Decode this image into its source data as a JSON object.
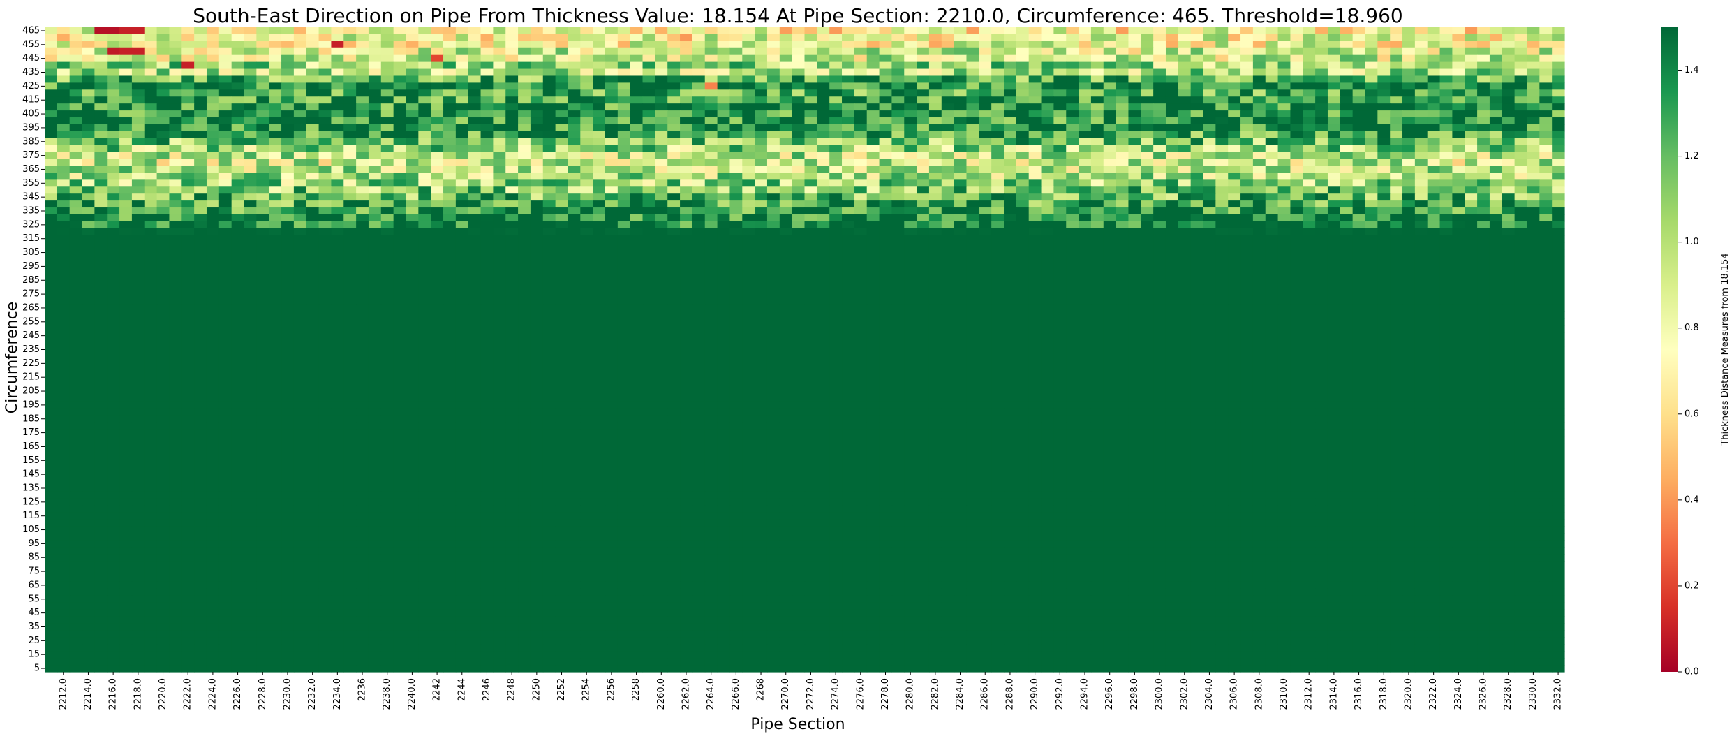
{
  "chart_data": {
    "type": "heatmap",
    "title": "South-East Direction on Pipe From Thickness Value: 18.154 At Pipe Section: 2210.0, Circumference: 465. Threshold=18.960",
    "xlabel": "Pipe Section",
    "ylabel": "Circumference",
    "colorbar_label": "Thickness Distance Measures from 18.154",
    "colormap": "RdYlGn",
    "colormap_stops": [
      "#a50026",
      "#d73027",
      "#f46d43",
      "#fdae61",
      "#fee08b",
      "#ffffbf",
      "#d9ef8b",
      "#a6d96a",
      "#66bd63",
      "#1a9850",
      "#006837"
    ],
    "vmin": 0.0,
    "vmax": 1.5,
    "colorbar_ticks": [
      "0.0",
      "0.2",
      "0.4",
      "0.6",
      "0.8",
      "1.0",
      "1.2",
      "1.4"
    ],
    "x_start": 2211,
    "x_step": 1,
    "x_count": 122,
    "x_tick_labels": [
      "2212.0",
      "2214.0",
      "2216.0",
      "2218.0",
      "2220.0",
      "2222.0",
      "2224.0",
      "2226.0",
      "2228.0",
      "2230.0",
      "2232.0",
      "2234.0",
      "2236",
      "2238.0",
      "2240.0",
      "2242",
      "2244",
      "2246",
      "2248",
      "2250",
      "2252",
      "2254",
      "2256",
      "2258",
      "2260.0",
      "2262.0",
      "2264.0",
      "2266.0",
      "2268",
      "2270.0",
      "2272.0",
      "2274.0",
      "2276.0",
      "2278.0",
      "2280.0",
      "2282.0",
      "2284.0",
      "2286.0",
      "2288.0",
      "2290.0",
      "2292.0",
      "2294.0",
      "2296.0",
      "2298.0",
      "2300.0",
      "2302.0",
      "2304.0",
      "2306.0",
      "2308.0",
      "2310.0",
      "2312.0",
      "2314.0",
      "2316.0",
      "2318.0",
      "2320.0",
      "2322.0",
      "2324.0",
      "2326.0",
      "2328.0",
      "2330.0",
      "2332.0"
    ],
    "y_tick_labels": [
      "465",
      "455",
      "445",
      "435",
      "425",
      "415",
      "405",
      "395",
      "385",
      "375",
      "365",
      "355",
      "345",
      "335",
      "325",
      "315",
      "305",
      "295",
      "285",
      "275",
      "265",
      "255",
      "245",
      "235",
      "225",
      "215",
      "205",
      "195",
      "185",
      "175",
      "165",
      "155",
      "145",
      "135",
      "125",
      "115",
      "105",
      "95",
      "85",
      "75",
      "65",
      "55",
      "45",
      "35",
      "25",
      "15",
      "5"
    ],
    "y_rows_top_to_bottom": [
      465,
      460,
      455,
      450,
      445,
      440,
      435,
      430,
      425,
      420,
      415,
      410,
      405,
      400,
      395,
      390,
      385,
      380,
      375,
      370,
      365,
      360,
      355,
      350,
      345,
      340,
      335,
      330,
      325,
      320,
      315,
      310,
      305,
      300,
      295,
      290,
      285,
      280,
      275,
      270,
      265,
      260,
      255,
      250,
      245,
      240,
      235,
      230,
      225,
      220,
      215,
      210,
      205,
      200,
      195,
      190,
      185,
      180,
      175,
      170,
      165,
      160,
      155,
      150,
      145,
      140,
      135,
      130,
      125,
      120,
      115,
      110,
      105,
      100,
      95,
      90,
      85,
      80,
      75,
      70,
      65,
      60,
      55,
      50,
      45,
      40,
      35,
      30,
      25,
      20,
      15,
      10,
      5
    ],
    "row_value_profile": [
      {
        "circumference": 465,
        "approx_value": 0.75
      },
      {
        "circumference": 460,
        "approx_value": 0.8
      },
      {
        "circumference": 455,
        "approx_value": 0.78
      },
      {
        "circumference": 450,
        "approx_value": 0.9
      },
      {
        "circumference": 445,
        "approx_value": 0.9
      },
      {
        "circumference": 440,
        "approx_value": 1.05
      },
      {
        "circumference": 435,
        "approx_value": 1.0
      },
      {
        "circumference": 430,
        "approx_value": 1.25
      },
      {
        "circumference": 425,
        "approx_value": 1.4
      },
      {
        "circumference": 420,
        "approx_value": 1.3
      },
      {
        "circumference": 415,
        "approx_value": 1.35
      },
      {
        "circumference": 410,
        "approx_value": 1.38
      },
      {
        "circumference": 405,
        "approx_value": 1.4
      },
      {
        "circumference": 400,
        "approx_value": 1.38
      },
      {
        "circumference": 395,
        "approx_value": 1.4
      },
      {
        "circumference": 390,
        "approx_value": 1.3
      },
      {
        "circumference": 385,
        "approx_value": 1.15
      },
      {
        "circumference": 380,
        "approx_value": 1.05
      },
      {
        "circumference": 375,
        "approx_value": 0.95
      },
      {
        "circumference": 370,
        "approx_value": 0.9
      },
      {
        "circumference": 365,
        "approx_value": 0.95
      },
      {
        "circumference": 360,
        "approx_value": 1.0
      },
      {
        "circumference": 355,
        "approx_value": 1.05
      },
      {
        "circumference": 350,
        "approx_value": 1.12
      },
      {
        "circumference": 345,
        "approx_value": 1.2
      },
      {
        "circumference": 340,
        "approx_value": 1.28
      },
      {
        "circumference": 335,
        "approx_value": 1.35
      },
      {
        "circumference": 330,
        "approx_value": 1.42
      },
      {
        "circumference": 325,
        "approx_value": 1.46
      },
      {
        "circumference": 320,
        "approx_value": 1.5
      }
    ],
    "notable_low_cells": [
      {
        "pipe_section": 2215,
        "circumference": 465,
        "approx_value": 0.05
      },
      {
        "pipe_section": 2216,
        "circumference": 465,
        "approx_value": 0.05
      },
      {
        "pipe_section": 2217,
        "circumference": 465,
        "approx_value": 0.1
      },
      {
        "pipe_section": 2218,
        "circumference": 465,
        "approx_value": 0.1
      },
      {
        "pipe_section": 2216,
        "circumference": 450,
        "approx_value": 0.08
      },
      {
        "pipe_section": 2217,
        "circumference": 450,
        "approx_value": 0.1
      },
      {
        "pipe_section": 2218,
        "circumference": 450,
        "approx_value": 0.1
      },
      {
        "pipe_section": 2222,
        "circumference": 440,
        "approx_value": 0.1
      },
      {
        "pipe_section": 2234,
        "circumference": 455,
        "approx_value": 0.1
      },
      {
        "pipe_section": 2242,
        "circumference": 445,
        "approx_value": 0.2
      },
      {
        "pipe_section": 2264,
        "circumference": 425,
        "approx_value": 0.35
      },
      {
        "pipe_section": 2262,
        "circumference": 460,
        "approx_value": 0.4
      }
    ],
    "grid": false,
    "legend": "colorbar-right"
  }
}
